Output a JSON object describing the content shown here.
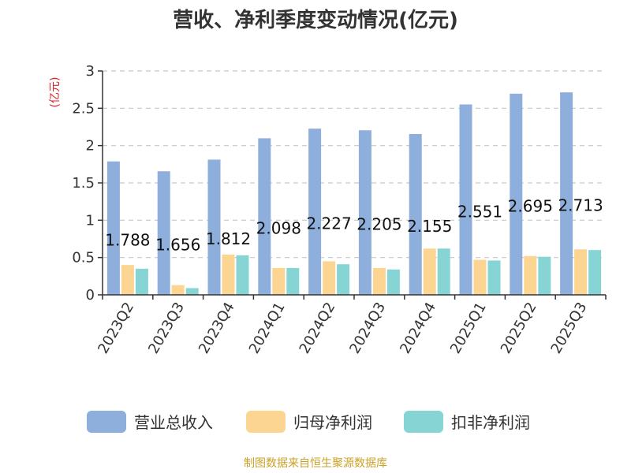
{
  "chart_data": {
    "type": "bar",
    "title": "营收、净利季度变动情况(亿元)",
    "unit_label": "(亿元)",
    "categories": [
      "2023Q2",
      "2023Q3",
      "2023Q4",
      "2024Q1",
      "2024Q2",
      "2024Q3",
      "2024Q4",
      "2025Q1",
      "2025Q2",
      "2025Q3"
    ],
    "series": [
      {
        "name": "营业总收入",
        "color": "#8eaedb",
        "values": [
          1.788,
          1.656,
          1.812,
          2.098,
          2.227,
          2.205,
          2.155,
          2.551,
          2.695,
          2.713
        ]
      },
      {
        "name": "归母净利润",
        "color": "#fcd592",
        "values": [
          0.4,
          0.13,
          0.54,
          0.36,
          0.45,
          0.36,
          0.62,
          0.47,
          0.52,
          0.61
        ]
      },
      {
        "name": "扣非净利润",
        "color": "#86d4d4",
        "values": [
          0.35,
          0.09,
          0.53,
          0.36,
          0.41,
          0.34,
          0.62,
          0.46,
          0.51,
          0.6
        ]
      }
    ],
    "data_labels": [
      "1.788",
      "1.656",
      "1.812",
      "2.098",
      "2.227",
      "2.205",
      "2.155",
      "2.551",
      "2.695",
      "2.713"
    ],
    "y_ticks": [
      "0",
      "0.5",
      "1",
      "1.5",
      "2",
      "2.5",
      "3"
    ],
    "ylim": [
      0,
      3
    ],
    "grid": true,
    "legend_position": "bottom"
  },
  "source_note": "制图数据来自恒生聚源数据库"
}
